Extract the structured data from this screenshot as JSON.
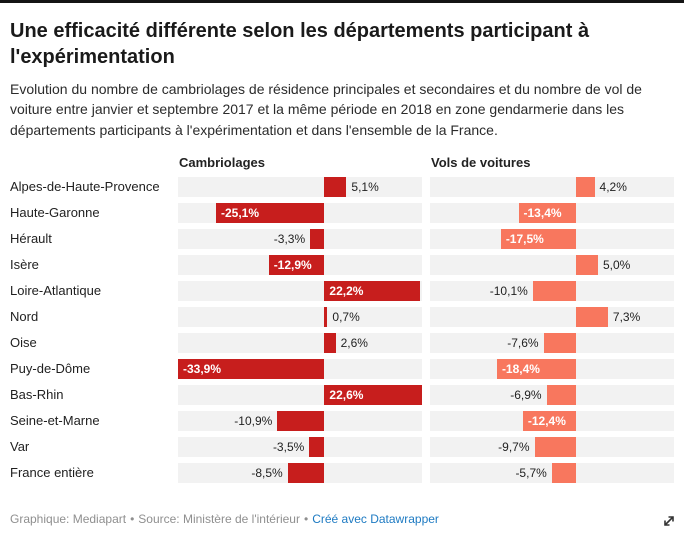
{
  "header": {
    "title": "Une efficacité différente selon les départements participant à l'expérimentation",
    "description": "Evolution du nombre de cambriolages de résidence principales et secondaires et du nombre de vol de voiture entre janvier et septembre 2017 et la même période en 2018 en zone gendarmerie dans les départements participants à l'expérimentation et dans l'ensemble de la France."
  },
  "footer": {
    "graphic_credit": "Graphique: Mediapart",
    "source": "Source: Ministère de l'intérieur",
    "separator": "•",
    "datawrapper_credit": "Créé avec Datawrapper",
    "expand_icon": "expand-arrow-icon"
  },
  "colors": {
    "cambriolages_bar": "#c71e1d",
    "vols_bar": "#f8775e",
    "track": "#f2f2f2",
    "credit_link": "#1d7ac2"
  },
  "chart_data": {
    "type": "bar",
    "layout": "split-horizontal-bars",
    "unit": "%",
    "value_range": [
      -33.9,
      22.6
    ],
    "grid": false,
    "legend_position": "none",
    "columns": [
      {
        "label": "Cambriolages",
        "color": "#c71e1d"
      },
      {
        "label": "Vols de voitures",
        "color": "#f8775e"
      }
    ],
    "rows": [
      {
        "label": "Alpes-de-Haute-Provence",
        "values": [
          5.1,
          4.2
        ],
        "labels": [
          "5,1%",
          "4,2%"
        ],
        "inside": [
          false,
          false
        ]
      },
      {
        "label": "Haute-Garonne",
        "values": [
          -25.1,
          -13.4
        ],
        "labels": [
          "-25,1%",
          "-13,4%"
        ],
        "inside": [
          true,
          true
        ]
      },
      {
        "label": "Hérault",
        "values": [
          -3.3,
          -17.5
        ],
        "labels": [
          "-3,3%",
          "-17,5%"
        ],
        "inside": [
          false,
          true
        ]
      },
      {
        "label": "Isère",
        "values": [
          -12.9,
          5.0
        ],
        "labels": [
          "-12,9%",
          "5,0%"
        ],
        "inside": [
          true,
          false
        ]
      },
      {
        "label": "Loire-Atlantique",
        "values": [
          22.2,
          -10.1
        ],
        "labels": [
          "22,2%",
          "-10,1%"
        ],
        "inside": [
          true,
          false
        ]
      },
      {
        "label": "Nord",
        "values": [
          0.7,
          7.3
        ],
        "labels": [
          "0,7%",
          "7,3%"
        ],
        "inside": [
          false,
          false
        ]
      },
      {
        "label": "Oise",
        "values": [
          2.6,
          -7.6
        ],
        "labels": [
          "2,6%",
          "-7,6%"
        ],
        "inside": [
          false,
          false
        ]
      },
      {
        "label": "Puy-de-Dôme",
        "values": [
          -33.9,
          -18.4
        ],
        "labels": [
          "-33,9%",
          "-18,4%"
        ],
        "inside": [
          true,
          true
        ]
      },
      {
        "label": "Bas-Rhin",
        "values": [
          22.6,
          -6.9
        ],
        "labels": [
          "22,6%",
          "-6,9%"
        ],
        "inside": [
          true,
          false
        ]
      },
      {
        "label": "Seine-et-Marne",
        "values": [
          -10.9,
          -12.4
        ],
        "labels": [
          "-10,9%",
          "-12,4%"
        ],
        "inside": [
          false,
          true
        ]
      },
      {
        "label": "Var",
        "values": [
          -3.5,
          -9.7
        ],
        "labels": [
          "-3,5%",
          "-9,7%"
        ],
        "inside": [
          false,
          false
        ]
      },
      {
        "label": "France entière",
        "values": [
          -8.5,
          -5.7
        ],
        "labels": [
          "-8,5%",
          "-5,7%"
        ],
        "inside": [
          false,
          false
        ]
      }
    ]
  }
}
